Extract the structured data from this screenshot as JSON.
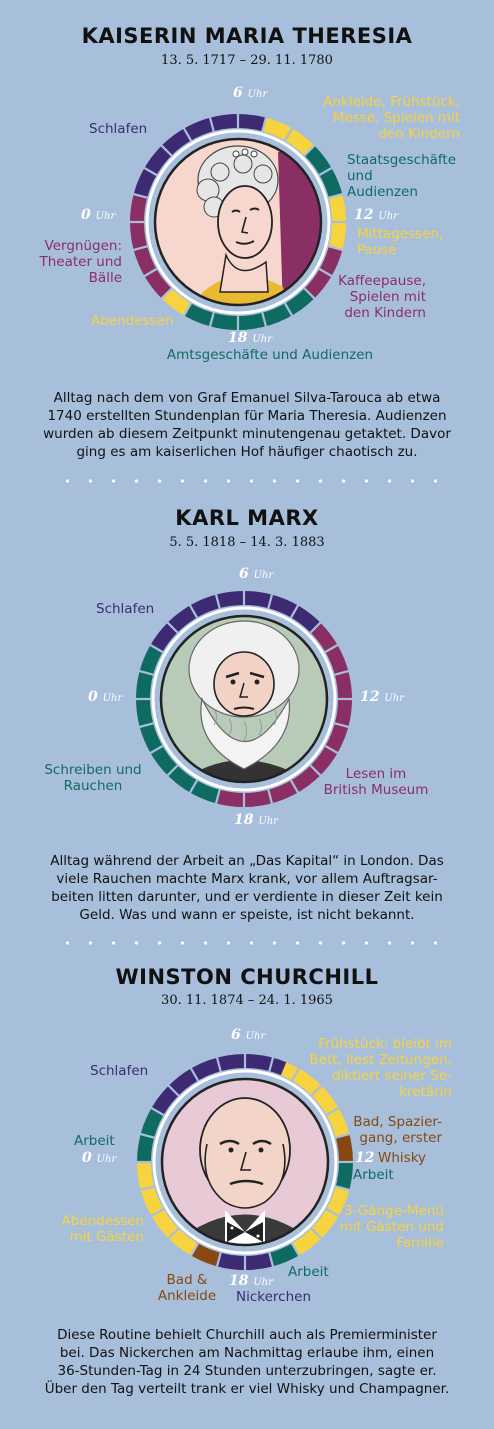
{
  "hour_labels": {
    "six": "6",
    "twelve": "12",
    "eighteen": "18",
    "zero": "0",
    "suffix": "Uhr"
  },
  "colors": {
    "sleep": "#3d2a73",
    "work": "#0f6b62",
    "meal": "#f6d33f",
    "leisure": "#8a2f63",
    "whisky": "#874811",
    "background": "#a8bfdc"
  },
  "sections": [
    {
      "title": "KAISERIN MARIA THERESIA",
      "dates": "13. 5. 1717 – 29. 11. 1780",
      "labels": {
        "schlafen": "Schlafen",
        "ankleide": [
          "Ankleide, Frühstück,",
          "Messe, Spielen mit",
          "den Kindern"
        ],
        "staat": [
          "Staatsgeschäfte",
          "und",
          "Audienzen"
        ],
        "mittag": [
          "Mittagessen,",
          "Pause"
        ],
        "kaffee": [
          "Kaffeepause,",
          "Spielen mit",
          "den Kindern"
        ],
        "amts": "Amtsgeschäfte und Audienzen",
        "abend": "Abendessen",
        "vergnuegen": [
          "Vergnügen:",
          "Theater und",
          "Bälle"
        ]
      },
      "description": [
        "Alltag nach dem von Graf Emanuel Silva-Tarouca ab etwa",
        "1740 erstellten Stundenplan für Maria Theresia. Audienzen",
        "wurden ab diesem Zeitpunkt minutengenau getaktet. Davor",
        "ging es am kaiserlichen Hof häufiger chaotisch zu."
      ],
      "schedule": [
        {
          "start": 0,
          "end": 1,
          "category": "leisure"
        },
        {
          "start": 1,
          "end": 7,
          "category": "sleep"
        },
        {
          "start": 7,
          "end": 9,
          "category": "meal"
        },
        {
          "start": 9,
          "end": 11,
          "category": "work"
        },
        {
          "start": 11,
          "end": 13,
          "category": "meal"
        },
        {
          "start": 13,
          "end": 15,
          "category": "leisure"
        },
        {
          "start": 15,
          "end": 20,
          "category": "work"
        },
        {
          "start": 20,
          "end": 21,
          "category": "meal"
        },
        {
          "start": 21,
          "end": 24,
          "category": "leisure"
        }
      ]
    },
    {
      "title": "KARL MARX",
      "dates": "5. 5. 1818 – 14. 3. 1883",
      "labels": {
        "schlafen": "Schlafen",
        "schreiben": [
          "Schreiben und",
          "Rauchen"
        ],
        "lesen": [
          "Lesen im",
          "British Museum"
        ]
      },
      "description": [
        "Alltag während der Arbeit an „Das Kapital“ in London. Das",
        "viele Rauchen machte Marx krank, vor allem Auftragsar-",
        "beiten litten darunter, und er verdiente in dieser Zeit kein",
        "Geld. Was und wann er speiste, ist nicht bekannt."
      ],
      "schedule": [
        {
          "start": 0,
          "end": 2,
          "category": "work"
        },
        {
          "start": 2,
          "end": 9,
          "category": "sleep"
        },
        {
          "start": 9,
          "end": 19,
          "category": "leisure"
        },
        {
          "start": 19,
          "end": 24,
          "category": "work"
        }
      ]
    },
    {
      "title": "WINSTON CHURCHILL",
      "dates": "30. 11. 1874 – 24. 1. 1965",
      "labels": {
        "schlafen": "Schlafen",
        "fruehstueck": [
          "Frühstück: bleibt im",
          "Bett, liest Zeitungen,",
          "diktiert seiner Se-",
          "kretärin"
        ],
        "bad": [
          "Bad, Spazier-",
          "gang, erster"
        ],
        "whisky": "Whisky",
        "arbeit_mid": "Arbeit",
        "menue": [
          "3-Gänge-Menü",
          "mit Gästen und",
          "Familie"
        ],
        "arbeit_low": "Arbeit",
        "nickerchen": "Nickerchen",
        "bad_ankleide": [
          "Bad &",
          "Ankleide"
        ],
        "abendessen": [
          "Abendessen",
          "mit Gästen"
        ],
        "arbeit_left": "Arbeit"
      },
      "description": [
        "Diese Routine behielt Churchill auch als Premierminister",
        "bei. Das Nickerchen am Nachmittag erlaube ihm, einen",
        "36-Stunden-Tag in 24 Stunden unterzubringen, sagte er.",
        "Über den Tag verteilt trank er viel Whisky und Champagner."
      ],
      "schedule": [
        {
          "start": 0,
          "end": 2,
          "category": "work"
        },
        {
          "start": 2,
          "end": 7.5,
          "category": "sleep"
        },
        {
          "start": 7.5,
          "end": 11,
          "category": "meal"
        },
        {
          "start": 11,
          "end": 12,
          "category": "whisky"
        },
        {
          "start": 12,
          "end": 13,
          "category": "work"
        },
        {
          "start": 13,
          "end": 16,
          "category": "meal"
        },
        {
          "start": 16,
          "end": 17,
          "category": "work"
        },
        {
          "start": 17,
          "end": 19,
          "category": "sleep"
        },
        {
          "start": 19,
          "end": 20,
          "category": "whisky"
        },
        {
          "start": 20,
          "end": 24,
          "category": "meal"
        }
      ]
    }
  ]
}
